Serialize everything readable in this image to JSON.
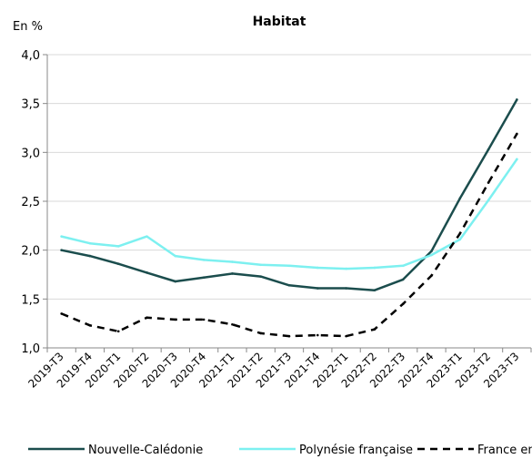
{
  "chart_data": {
    "type": "line",
    "title": "Habitat",
    "ylabel": "En %",
    "xlabel": "",
    "ylim": [
      1.0,
      4.0
    ],
    "yticks": [
      "1,0",
      "1,5",
      "2,0",
      "2,5",
      "3,0",
      "3,5",
      "4,0"
    ],
    "ytick_values": [
      1.0,
      1.5,
      2.0,
      2.5,
      3.0,
      3.5,
      4.0
    ],
    "grid": "horizontal",
    "legend_position": "bottom",
    "categories": [
      "2019-T3",
      "2019-T4",
      "2020-T1",
      "2020-T2",
      "2020-T3",
      "2020-T4",
      "2021-T1",
      "2021-T2",
      "2021-T3",
      "2021-T4",
      "2022-T1",
      "2022-T2",
      "2022-T3",
      "2022-T4",
      "2023-T1",
      "2023-T2",
      "2023-T3"
    ],
    "series": [
      {
        "name": "Nouvelle-Calédonie",
        "color": "#1b4d4d",
        "dash": "solid",
        "values": [
          2.0,
          1.94,
          1.86,
          1.77,
          1.68,
          1.72,
          1.76,
          1.73,
          1.64,
          1.61,
          1.61,
          1.59,
          1.7,
          1.99,
          2.53,
          3.03,
          3.54
        ]
      },
      {
        "name": "Polynésie française",
        "color": "#7df0f0",
        "dash": "solid",
        "values": [
          2.14,
          2.07,
          2.04,
          2.14,
          1.94,
          1.9,
          1.88,
          1.85,
          1.84,
          1.82,
          1.81,
          1.82,
          1.84,
          1.95,
          2.11,
          2.51,
          2.93
        ]
      },
      {
        "name": "France entière",
        "color": "#000000",
        "dash": "dashed",
        "values": [
          1.35,
          1.23,
          1.17,
          1.31,
          1.29,
          1.29,
          1.24,
          1.15,
          1.12,
          1.13,
          1.12,
          1.19,
          1.45,
          1.74,
          2.17,
          2.69,
          3.19
        ]
      }
    ]
  }
}
